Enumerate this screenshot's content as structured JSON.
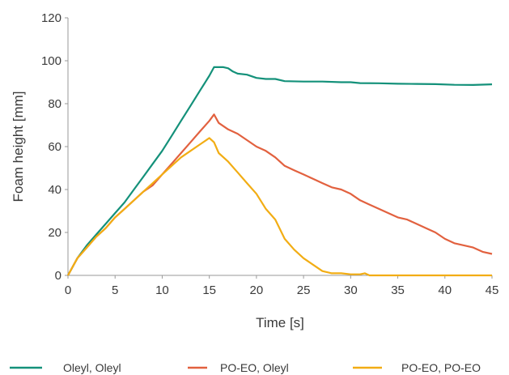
{
  "chart_data": {
    "type": "line",
    "title": "",
    "xlabel": "Time [s]",
    "ylabel": "Foam height [mm]",
    "xlim": [
      0,
      45
    ],
    "ylim": [
      0,
      120
    ],
    "xticks": [
      "0",
      "5",
      "10",
      "15",
      "20",
      "25",
      "30",
      "35",
      "40",
      "45"
    ],
    "yticks": [
      "0",
      "20",
      "40",
      "60",
      "80",
      "100",
      "120"
    ],
    "grid": false,
    "legend_position": "bottom",
    "series": [
      {
        "name": "Oleyl, Oleyl",
        "color": "#14917a",
        "x": [
          0,
          1,
          2,
          3,
          4,
          5,
          6,
          7,
          8,
          9,
          10,
          11,
          12,
          13,
          14,
          15,
          15.5,
          16.5,
          17,
          17.5,
          18,
          19,
          20,
          21,
          22,
          23,
          25,
          27,
          29,
          30,
          31,
          33,
          35,
          37,
          39,
          41,
          43,
          45
        ],
        "y": [
          0,
          8,
          14,
          19,
          24,
          29,
          34,
          40,
          46,
          52,
          58,
          65,
          72,
          79,
          86,
          93,
          97,
          97,
          96.5,
          95,
          94,
          93.5,
          92,
          91.5,
          91.5,
          90.5,
          90.3,
          90.3,
          90,
          90,
          89.6,
          89.5,
          89.3,
          89.2,
          89.1,
          88.8,
          88.7,
          89
        ]
      },
      {
        "name": "PO-EO, Oleyl",
        "color": "#e2613f",
        "x": [
          0,
          1,
          2,
          3,
          4,
          5,
          6,
          7,
          8,
          9,
          10,
          11,
          12,
          13,
          14,
          15,
          15.5,
          16,
          17,
          18,
          19,
          20,
          21,
          22,
          23,
          24,
          25,
          26,
          27,
          28,
          29,
          30,
          31,
          32,
          33,
          34,
          35,
          36,
          37,
          38,
          39,
          40,
          41,
          42,
          43,
          44,
          45
        ],
        "y": [
          0,
          8,
          13,
          18,
          22,
          27,
          31,
          35,
          39,
          42,
          47,
          52,
          57,
          62,
          67,
          72,
          75,
          71,
          68,
          66,
          63,
          60,
          58,
          55,
          51,
          49,
          47,
          45,
          43,
          41,
          40,
          38,
          35,
          33,
          31,
          29,
          27,
          26,
          24,
          22,
          20,
          17,
          15,
          14,
          13,
          11,
          10
        ]
      },
      {
        "name": "PO-EO, PO-EO",
        "color": "#f2ad14",
        "x": [
          0,
          1,
          2,
          3,
          4,
          5,
          6,
          7,
          8,
          9,
          10,
          11,
          12,
          13,
          14,
          15,
          15.5,
          16,
          17,
          18,
          19,
          20,
          21,
          22,
          23,
          24,
          25,
          26,
          27,
          28,
          29,
          30,
          31,
          31.5,
          32,
          33,
          35,
          40,
          45
        ],
        "y": [
          0,
          8,
          13,
          18,
          22,
          27,
          31,
          35,
          39,
          43,
          47,
          51,
          55,
          58,
          61,
          64,
          62,
          57,
          53,
          48,
          43,
          38,
          31,
          26,
          17,
          12,
          8,
          5,
          2,
          1,
          1,
          0.5,
          0.5,
          1,
          0,
          0,
          0,
          0,
          0
        ]
      }
    ]
  }
}
